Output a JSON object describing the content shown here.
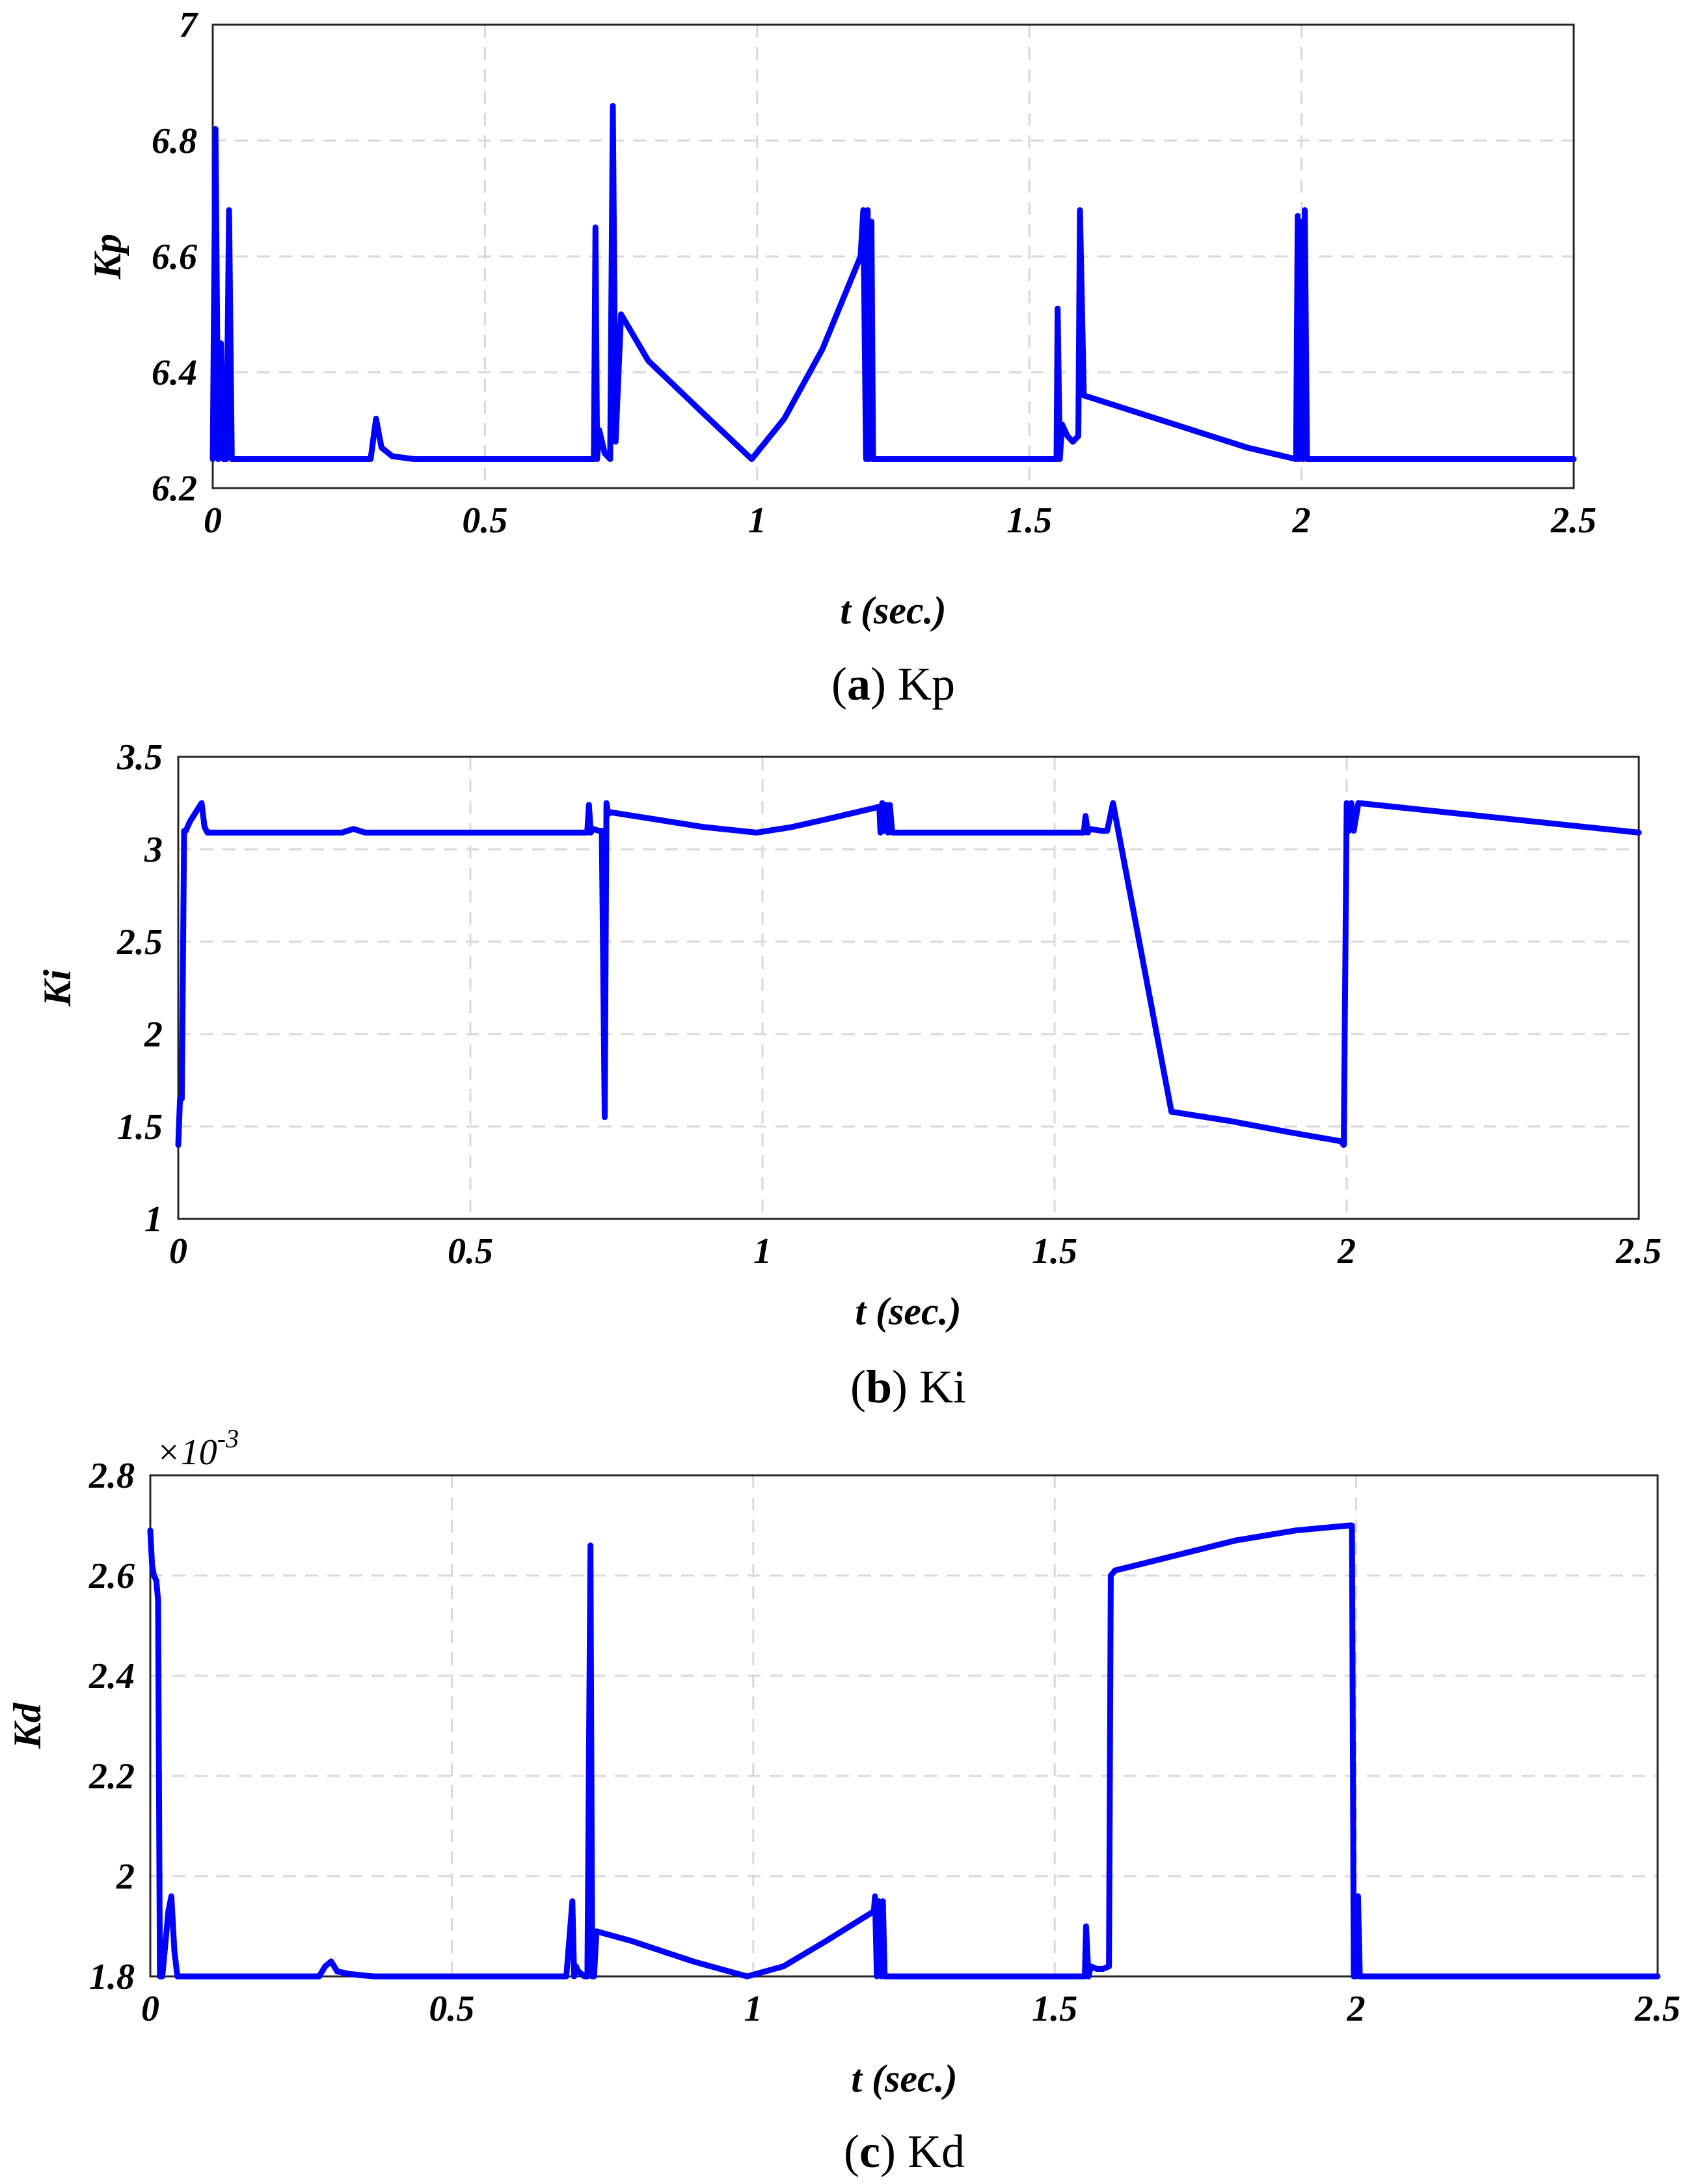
{
  "chart_data": [
    {
      "type": "line",
      "panel": "a",
      "ylabel": "Kp",
      "xlabel": "t (sec.)",
      "caption_letter": "a",
      "caption_text": "Kp",
      "xlim": [
        0,
        2.5
      ],
      "ylim": [
        6.2,
        7.0
      ],
      "xticks": [
        0,
        0.5,
        1,
        1.5,
        2,
        2.5
      ],
      "xtick_labels": [
        "0",
        "0.5",
        "1",
        "1.5",
        "2",
        "2.5"
      ],
      "yticks": [
        6.2,
        6.4,
        6.6,
        6.8,
        7.0
      ],
      "ytick_labels": [
        "6.2",
        "6.4",
        "6.6",
        "6.8",
        "7"
      ],
      "color": "#0000ff",
      "series": [
        {
          "name": "Kp",
          "x": [
            0,
            0.005,
            0.01,
            0.015,
            0.02,
            0.025,
            0.03,
            0.035,
            0.04,
            0.045,
            0.05,
            0.1,
            0.28,
            0.29,
            0.3,
            0.31,
            0.33,
            0.37,
            0.5,
            0.7,
            0.703,
            0.706,
            0.71,
            0.715,
            0.72,
            0.73,
            0.735,
            0.74,
            0.75,
            0.8,
            0.9,
            0.99,
            1.05,
            1.12,
            1.19,
            1.195,
            1.2,
            1.203,
            1.206,
            1.21,
            1.213,
            1.216,
            1.22,
            1.223,
            1.226,
            1.3,
            1.5,
            1.55,
            1.552,
            1.556,
            1.56,
            1.57,
            1.58,
            1.59,
            1.593,
            1.6,
            1.7,
            1.8,
            1.9,
            1.99,
            1.993,
            1.996,
            2.0,
            2.003,
            2.006,
            2.01,
            2.013,
            2.02,
            2.2,
            2.5
          ],
          "y": [
            6.25,
            6.82,
            6.25,
            6.45,
            6.25,
            6.25,
            6.68,
            6.25,
            6.25,
            6.25,
            6.25,
            6.25,
            6.25,
            6.25,
            6.32,
            6.27,
            6.255,
            6.25,
            6.25,
            6.25,
            6.65,
            6.25,
            6.3,
            6.28,
            6.26,
            6.25,
            6.86,
            6.28,
            6.5,
            6.42,
            6.33,
            6.25,
            6.32,
            6.44,
            6.6,
            6.68,
            6.25,
            6.68,
            6.25,
            6.66,
            6.25,
            6.25,
            6.25,
            6.25,
            6.25,
            6.25,
            6.25,
            6.25,
            6.51,
            6.25,
            6.31,
            6.29,
            6.28,
            6.29,
            6.68,
            6.36,
            6.33,
            6.3,
            6.27,
            6.25,
            6.67,
            6.25,
            6.66,
            6.25,
            6.68,
            6.25,
            6.25,
            6.25,
            6.25,
            6.25
          ]
        }
      ]
    },
    {
      "type": "line",
      "panel": "b",
      "ylabel": "Ki",
      "xlabel": "t (sec.)",
      "caption_letter": "b",
      "caption_text": "Ki",
      "xlim": [
        0,
        2.5
      ],
      "ylim": [
        1.0,
        3.5
      ],
      "xticks": [
        0,
        0.5,
        1,
        1.5,
        2,
        2.5
      ],
      "xtick_labels": [
        "0",
        "0.5",
        "1",
        "1.5",
        "2",
        "2.5"
      ],
      "yticks": [
        1.0,
        1.5,
        2.0,
        2.5,
        3.0,
        3.5
      ],
      "ytick_labels": [
        "1",
        "1.5",
        "2",
        "2.5",
        "3",
        "3.5"
      ],
      "color": "#0000ff",
      "series": [
        {
          "name": "Ki",
          "x": [
            0,
            0.003,
            0.006,
            0.01,
            0.013,
            0.02,
            0.03,
            0.04,
            0.045,
            0.05,
            0.1,
            0.28,
            0.3,
            0.32,
            0.5,
            0.7,
            0.703,
            0.706,
            0.71,
            0.72,
            0.725,
            0.73,
            0.733,
            0.736,
            0.74,
            0.8,
            0.9,
            0.99,
            1.05,
            1.12,
            1.2,
            1.202,
            1.205,
            1.208,
            1.212,
            1.215,
            1.218,
            1.222,
            1.3,
            1.5,
            1.55,
            1.553,
            1.557,
            1.56,
            1.58,
            1.59,
            1.6,
            1.7,
            1.8,
            1.9,
            1.99,
            1.995,
            2.0,
            2.004,
            2.008,
            2.012,
            2.02,
            2.5
          ],
          "y": [
            1.4,
            1.65,
            1.65,
            3.1,
            3.1,
            3.15,
            3.2,
            3.25,
            3.12,
            3.09,
            3.09,
            3.09,
            3.11,
            3.09,
            3.09,
            3.09,
            3.24,
            3.09,
            3.11,
            3.1,
            3.1,
            1.55,
            3.25,
            3.19,
            3.2,
            3.17,
            3.12,
            3.09,
            3.12,
            3.17,
            3.23,
            3.09,
            3.25,
            3.1,
            3.24,
            3.09,
            3.24,
            3.09,
            3.09,
            3.09,
            3.09,
            3.18,
            3.09,
            3.11,
            3.1,
            3.1,
            3.25,
            1.58,
            1.53,
            1.47,
            1.42,
            1.4,
            3.25,
            3.1,
            3.25,
            3.1,
            3.25,
            3.09
          ]
        }
      ]
    },
    {
      "type": "line",
      "panel": "c",
      "ylabel": "Kd",
      "xlabel": "t (sec.)",
      "caption_letter": "c",
      "caption_text": "Kd",
      "multiplier": "×10",
      "multiplier_exp": "-3",
      "xlim": [
        0,
        2.5
      ],
      "ylim": [
        1.8,
        2.8
      ],
      "xticks": [
        0,
        0.5,
        1,
        1.5,
        2,
        2.5
      ],
      "xtick_labels": [
        "0",
        "0.5",
        "1",
        "1.5",
        "2",
        "2.5"
      ],
      "yticks": [
        1.8,
        2.0,
        2.2,
        2.4,
        2.6,
        2.8
      ],
      "ytick_labels": [
        "1.8",
        "2",
        "2.2",
        "2.4",
        "2.6",
        "2.8"
      ],
      "color": "#0000ff",
      "series": [
        {
          "name": "Kd (×10^-3)",
          "x": [
            0,
            0.003,
            0.006,
            0.01,
            0.013,
            0.016,
            0.02,
            0.03,
            0.035,
            0.04,
            0.045,
            0.05,
            0.1,
            0.28,
            0.29,
            0.3,
            0.31,
            0.33,
            0.37,
            0.5,
            0.69,
            0.7,
            0.703,
            0.706,
            0.71,
            0.72,
            0.725,
            0.73,
            0.733,
            0.736,
            0.74,
            0.8,
            0.9,
            0.99,
            1.05,
            1.12,
            1.2,
            1.202,
            1.205,
            1.208,
            1.212,
            1.215,
            1.218,
            1.222,
            1.3,
            1.5,
            1.55,
            1.552,
            1.556,
            1.56,
            1.57,
            1.58,
            1.59,
            1.593,
            1.6,
            1.7,
            1.8,
            1.9,
            1.99,
            1.993,
            1.996,
            2.0,
            2.003,
            2.006,
            2.01,
            2.013,
            2.02,
            2.2,
            2.5
          ],
          "y": [
            2.69,
            2.62,
            2.6,
            2.59,
            2.55,
            1.8,
            1.8,
            1.93,
            1.96,
            1.85,
            1.8,
            1.8,
            1.8,
            1.8,
            1.82,
            1.83,
            1.81,
            1.805,
            1.8,
            1.8,
            1.8,
            1.95,
            1.8,
            1.82,
            1.81,
            1.8,
            1.8,
            2.66,
            1.8,
            1.8,
            1.89,
            1.87,
            1.83,
            1.8,
            1.82,
            1.87,
            1.93,
            1.96,
            1.8,
            1.95,
            1.8,
            1.95,
            1.8,
            1.8,
            1.8,
            1.8,
            1.8,
            1.9,
            1.8,
            1.82,
            1.815,
            1.815,
            1.82,
            2.6,
            2.61,
            2.64,
            2.67,
            2.69,
            2.7,
            2.7,
            1.8,
            1.8,
            1.96,
            1.8,
            1.8,
            1.8,
            1.8,
            1.8,
            1.8
          ]
        }
      ]
    }
  ]
}
